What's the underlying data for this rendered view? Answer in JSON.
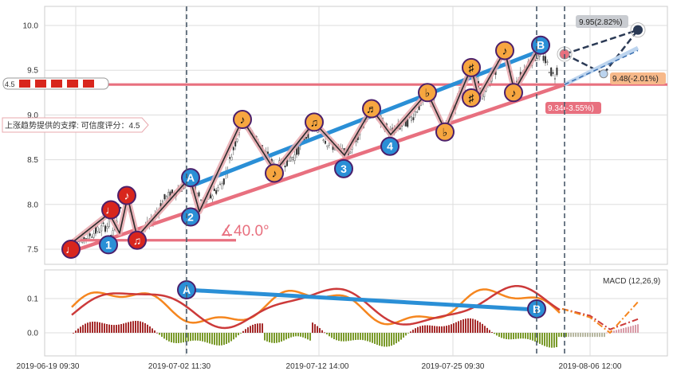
{
  "colors": {
    "blue_trend": "#2a8fd6",
    "red_trend": "#e8707f",
    "orange_marker": "#f7a640",
    "red_marker": "#d8261d",
    "blue_marker": "#2a8fd6",
    "zigzag": "#2b2b2b",
    "zigzag_halo": "#e8a8ae",
    "macd_line": "#cc3a3a",
    "signal_line": "#f5861f",
    "hist_pos": "#a52a2a",
    "hist_neg": "#7a9a2a",
    "grid": "#dddddd"
  },
  "chart_data": [
    {
      "type": "candlestick",
      "panel": "price",
      "ylim": [
        7.3,
        10.2
      ],
      "yticks": [
        "7.5",
        "8.0",
        "8.5",
        "9.0",
        "9.5",
        "10.0"
      ],
      "xticks": [
        "2019-06-19 09:30",
        "2019-07-02 11:30",
        "2019-07-12 14:00",
        "2019-07-25 09:30",
        "2019-08-06 12:00"
      ],
      "resistance_line": {
        "value": 9.34,
        "tag": "4.5"
      },
      "support_note": "上涨趋势提供的支撑: 可信度评分：4.5",
      "angle_label": "∡40.0°",
      "projections": [
        {
          "label": "9.95(2.82%)",
          "value": 9.95
        },
        {
          "label": "9.48(-2.01%)",
          "value": 9.48
        },
        {
          "label": "9.34(-3.55%)",
          "value": 9.34
        }
      ],
      "markers": [
        {
          "glyph": "♩",
          "kind": "red",
          "value": 7.5
        },
        {
          "glyph": "1",
          "kind": "blue",
          "value": 7.55
        },
        {
          "glyph": "♩",
          "kind": "red",
          "value": 7.94
        },
        {
          "glyph": "♪",
          "kind": "red",
          "value": 8.1
        },
        {
          "glyph": "♫",
          "kind": "red",
          "value": 7.6
        },
        {
          "glyph": "A",
          "kind": "blue",
          "value": 8.3
        },
        {
          "glyph": "2",
          "kind": "blue",
          "value": 7.86
        },
        {
          "glyph": "♪",
          "kind": "orange",
          "value": 8.95
        },
        {
          "glyph": "♪",
          "kind": "orange",
          "value": 8.35
        },
        {
          "glyph": "♫",
          "kind": "orange",
          "value": 8.92
        },
        {
          "glyph": "3",
          "kind": "blue",
          "value": 8.4
        },
        {
          "glyph": "♬",
          "kind": "orange",
          "value": 9.07
        },
        {
          "glyph": "4",
          "kind": "blue",
          "value": 8.65
        },
        {
          "glyph": "♭",
          "kind": "orange",
          "value": 9.25
        },
        {
          "glyph": "♭",
          "kind": "orange",
          "value": 8.81
        },
        {
          "glyph": "♯",
          "kind": "orange",
          "value": 9.53
        },
        {
          "glyph": "♯",
          "kind": "orange",
          "value": 9.19
        },
        {
          "glyph": "♪",
          "kind": "orange",
          "value": 9.72
        },
        {
          "glyph": "♪",
          "kind": "orange",
          "value": 9.25
        },
        {
          "glyph": "B",
          "kind": "blue",
          "value": 9.78
        }
      ]
    },
    {
      "type": "line",
      "panel": "macd",
      "title": "MACD (12,26,9)",
      "ylim": [
        -0.05,
        0.18
      ],
      "yticks": [
        "0.0",
        "0.1"
      ],
      "divergence_labels": [
        "A",
        "B"
      ]
    }
  ]
}
